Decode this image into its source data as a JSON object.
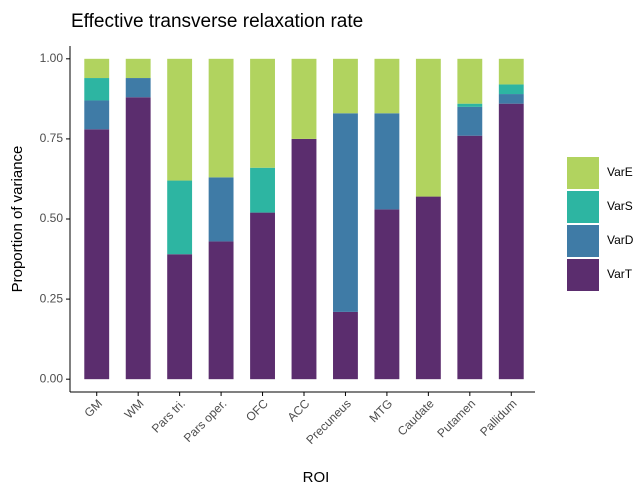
{
  "chart_data": {
    "type": "stacked_bar",
    "title": "Effective transverse relaxation rate",
    "xlabel": "ROI",
    "ylabel": "Proportion of variance",
    "categories": [
      "GM",
      "WM",
      "Pars tri.",
      "Pars oper.",
      "OFC",
      "ACC",
      "Precuneus",
      "MTG",
      "Caudate",
      "Putamen",
      "Pallidum"
    ],
    "series": [
      {
        "name": "VarT",
        "color": "#5b2d6e",
        "values": [
          0.78,
          0.88,
          0.39,
          0.43,
          0.52,
          0.75,
          0.21,
          0.53,
          0.57,
          0.76,
          0.86
        ]
      },
      {
        "name": "VarD",
        "color": "#3f7ba6",
        "values": [
          0.09,
          0.06,
          0,
          0.2,
          0,
          0,
          0.62,
          0.3,
          0,
          0.09,
          0.03
        ]
      },
      {
        "name": "VarS",
        "color": "#2db5a2",
        "values": [
          0.07,
          0,
          0.23,
          0,
          0.14,
          0,
          0,
          0,
          0,
          0.01,
          0.03
        ]
      },
      {
        "name": "VarE",
        "color": "#b1d35f",
        "values": [
          0.06,
          0.06,
          0.38,
          0.37,
          0.34,
          0.25,
          0.17,
          0.17,
          0.43,
          0.14,
          0.08
        ]
      }
    ],
    "ylim": [
      -0.04,
      1.04
    ],
    "yticks": [
      {
        "value": 0,
        "label": "0.00"
      },
      {
        "value": 0.25,
        "label": "0.25"
      },
      {
        "value": 0.5,
        "label": "0.50"
      },
      {
        "value": 0.75,
        "label": "0.75"
      },
      {
        "value": 1,
        "label": "1.00"
      }
    ]
  }
}
